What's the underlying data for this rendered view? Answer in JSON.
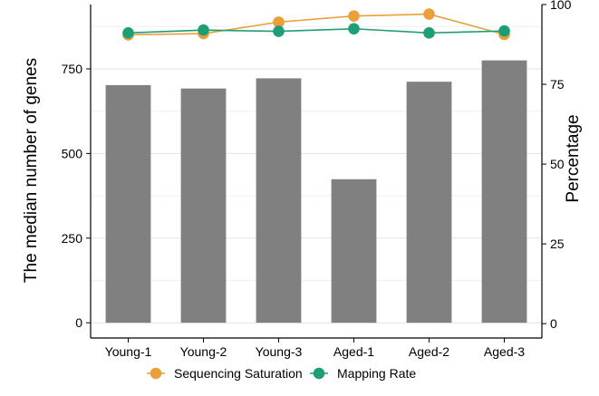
{
  "chart_data": {
    "type": "bar",
    "categories": [
      "Young-1",
      "Young-2",
      "Young-3",
      "Aged-1",
      "Aged-2",
      "Aged-3"
    ],
    "bar_series": {
      "name": "",
      "values": [
        702,
        692,
        722,
        424,
        712,
        775
      ],
      "color": "#808080",
      "axis": "left"
    },
    "line_series": [
      {
        "name": "Sequencing Saturation",
        "values": [
          90.5,
          90.9,
          94.5,
          96.4,
          97.0,
          90.6
        ],
        "color": "#E9A03B",
        "axis": "right"
      },
      {
        "name": "Mapping Rate",
        "values": [
          91.1,
          92.0,
          91.6,
          92.4,
          91.1,
          91.7
        ],
        "color": "#1E9E77",
        "axis": "right"
      }
    ],
    "ylabel": "The median number of genes",
    "y2label": "Percentage",
    "xlabel": "",
    "title": "",
    "ylim": [
      -45,
      940
    ],
    "y2lim": [
      -4.5,
      100
    ],
    "yticks": [
      0,
      250,
      500,
      750
    ],
    "y2ticks": [
      0,
      25,
      50,
      75,
      100
    ],
    "grid": true,
    "legend": {
      "position": "bottom",
      "entries": [
        "Sequencing Saturation",
        "Mapping Rate"
      ]
    }
  }
}
